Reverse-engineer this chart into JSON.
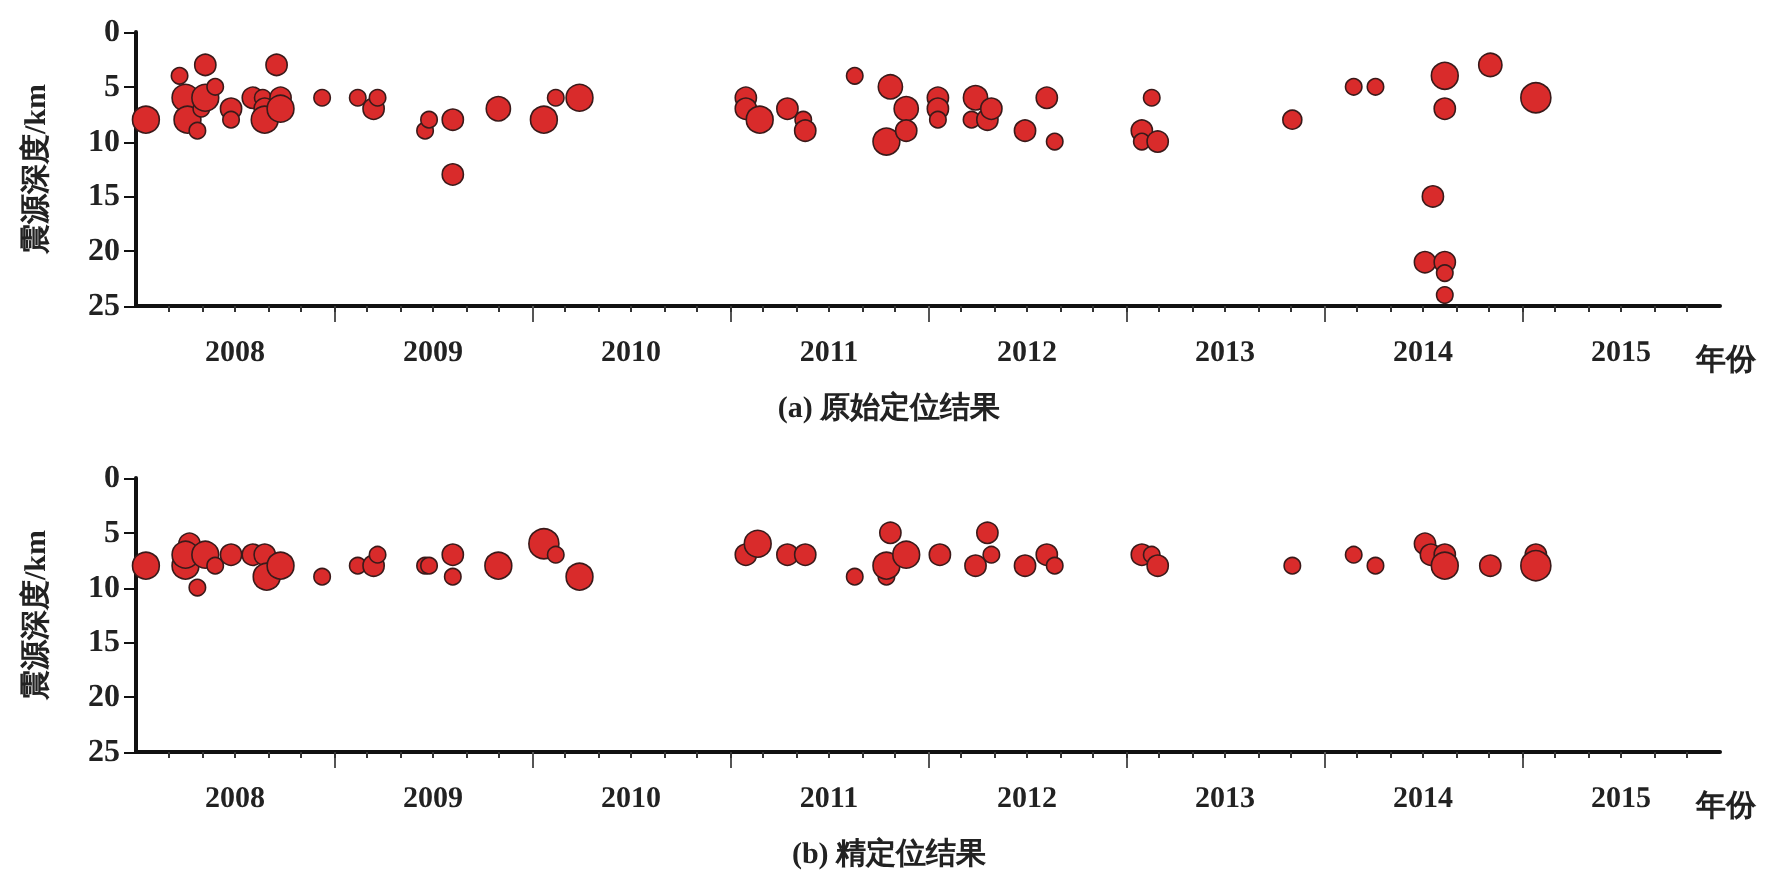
{
  "chart_data": [
    {
      "type": "bubble",
      "title": "(a) 原始定位结果",
      "xlabel": "年份",
      "ylabel": "震源深度/km",
      "color": "#d92b2b",
      "grid": false,
      "xlim": [
        2008,
        2016
      ],
      "ylim": [
        25,
        0
      ],
      "yticks": [
        0,
        5,
        10,
        15,
        20,
        25
      ],
      "xticks": [
        {
          "value": 2008.5,
          "label": "2008"
        },
        {
          "value": 2009,
          "label": null
        },
        {
          "value": 2009.5,
          "label": "2009"
        },
        {
          "value": 2010,
          "label": null
        },
        {
          "value": 2010.5,
          "label": "2010"
        },
        {
          "value": 2011,
          "label": null
        },
        {
          "value": 2011.5,
          "label": "2011"
        },
        {
          "value": 2012,
          "label": null
        },
        {
          "value": 2012.5,
          "label": "2012"
        },
        {
          "value": 2013,
          "label": null
        },
        {
          "value": 2013.5,
          "label": "2013"
        },
        {
          "value": 2014,
          "label": null
        },
        {
          "value": 2014.5,
          "label": "2014"
        },
        {
          "value": 2015,
          "label": null
        },
        {
          "value": 2015.5,
          "label": "2015"
        }
      ],
      "x": [
        2008.05,
        2008.22,
        2008.25,
        2008.26,
        2008.31,
        2008.33,
        2008.35,
        2008.35,
        2008.4,
        2008.48,
        2008.48,
        2008.59,
        2008.64,
        2008.65,
        2008.65,
        2008.71,
        2008.73,
        2008.73,
        2008.94,
        2009.12,
        2009.2,
        2009.22,
        2009.46,
        2009.48,
        2009.6,
        2009.6,
        2009.83,
        2010.06,
        2010.12,
        2010.24,
        2011.08,
        2011.08,
        2011.15,
        2011.29,
        2011.37,
        2011.38,
        2011.63,
        2011.81,
        2011.79,
        2011.89,
        2011.89,
        2012.05,
        2012.05,
        2012.05,
        2012.24,
        2012.22,
        2012.3,
        2012.32,
        2012.49,
        2012.6,
        2012.64,
        2013.08,
        2013.08,
        2013.13,
        2013.16,
        2013.84,
        2014.15,
        2014.26,
        2014.61,
        2014.61,
        2014.55,
        2014.51,
        2014.61,
        2014.61,
        2014.61,
        2014.84,
        2015.07
      ],
      "values": [
        8,
        4,
        6,
        8,
        9,
        7,
        3,
        6,
        5,
        7,
        8,
        6,
        6,
        7,
        8,
        3,
        6,
        7,
        6,
        6,
        7,
        6,
        9,
        8,
        8,
        13,
        7,
        8,
        6,
        6,
        6,
        7,
        8,
        7,
        8,
        9,
        4,
        5,
        10,
        7,
        9,
        6,
        7,
        8,
        6,
        8,
        8,
        7,
        9,
        6,
        10,
        9,
        10,
        6,
        10,
        8,
        5,
        5,
        4,
        7,
        15,
        21,
        21,
        22,
        24,
        3,
        6
      ],
      "sizes": [
        0.8,
        0.3,
        0.8,
        0.8,
        0.3,
        0.3,
        0.5,
        0.8,
        0.3,
        0.5,
        0.3,
        0.5,
        0.3,
        0.5,
        0.8,
        0.5,
        0.5,
        0.8,
        0.3,
        0.3,
        0.5,
        0.3,
        0.3,
        0.3,
        0.5,
        0.5,
        0.65,
        0.8,
        0.3,
        0.8,
        0.5,
        0.5,
        0.8,
        0.5,
        0.3,
        0.5,
        0.3,
        0.65,
        0.8,
        0.65,
        0.5,
        0.5,
        0.5,
        0.3,
        0.65,
        0.3,
        0.5,
        0.5,
        0.5,
        0.5,
        0.3,
        0.5,
        0.3,
        0.3,
        0.5,
        0.4,
        0.3,
        0.3,
        0.8,
        0.5,
        0.5,
        0.5,
        0.5,
        0.3,
        0.3,
        0.6,
        1
      ]
    },
    {
      "type": "bubble",
      "title": "(b) 精定位结果",
      "xlabel": "年份",
      "ylabel": "震源深度/km",
      "color": "#d92b2b",
      "grid": false,
      "xlim": [
        2008,
        2016
      ],
      "ylim": [
        25,
        0
      ],
      "yticks": [
        0,
        5,
        10,
        15,
        20,
        25
      ],
      "xticks": [
        {
          "value": 2008.5,
          "label": "2008"
        },
        {
          "value": 2009,
          "label": null
        },
        {
          "value": 2009.5,
          "label": "2009"
        },
        {
          "value": 2010,
          "label": null
        },
        {
          "value": 2010.5,
          "label": "2010"
        },
        {
          "value": 2011,
          "label": null
        },
        {
          "value": 2011.5,
          "label": "2011"
        },
        {
          "value": 2012,
          "label": null
        },
        {
          "value": 2012.5,
          "label": "2012"
        },
        {
          "value": 2013,
          "label": null
        },
        {
          "value": 2013.5,
          "label": "2013"
        },
        {
          "value": 2014,
          "label": null
        },
        {
          "value": 2014.5,
          "label": "2014"
        },
        {
          "value": 2015,
          "label": null
        },
        {
          "value": 2015.5,
          "label": "2015"
        }
      ],
      "x": [
        2008.05,
        2008.25,
        2008.27,
        2008.25,
        2008.31,
        2008.35,
        2008.4,
        2008.48,
        2008.59,
        2008.65,
        2008.66,
        2008.73,
        2008.94,
        2009.12,
        2009.2,
        2009.22,
        2009.46,
        2009.48,
        2009.6,
        2009.6,
        2009.83,
        2010.06,
        2010.12,
        2010.24,
        2011.08,
        2011.14,
        2011.29,
        2011.38,
        2011.63,
        2011.81,
        2011.79,
        2011.79,
        2011.89,
        2012.06,
        2012.3,
        2012.32,
        2012.24,
        2012.49,
        2012.6,
        2012.64,
        2013.08,
        2013.13,
        2013.16,
        2013.84,
        2014.15,
        2014.26,
        2014.51,
        2014.54,
        2014.61,
        2014.61,
        2014.84,
        2015.07,
        2015.07
      ],
      "values": [
        8,
        8,
        6,
        7,
        10,
        7,
        8,
        7,
        7,
        7,
        9,
        8,
        9,
        8,
        8,
        7,
        8,
        8,
        7,
        9,
        8,
        6,
        7,
        9,
        7,
        6,
        7,
        7,
        9,
        5,
        9,
        8,
        7,
        7,
        5,
        7,
        8,
        8,
        7,
        8,
        7,
        7,
        8,
        8,
        7,
        8,
        6,
        7,
        7,
        8,
        8,
        7,
        8
      ],
      "sizes": [
        0.8,
        0.8,
        0.5,
        0.8,
        0.3,
        0.8,
        0.3,
        0.5,
        0.5,
        0.5,
        0.8,
        0.8,
        0.3,
        0.3,
        0.5,
        0.3,
        0.3,
        0.3,
        0.5,
        0.3,
        0.8,
        1,
        0.3,
        0.8,
        0.5,
        0.8,
        0.5,
        0.5,
        0.3,
        0.5,
        0.3,
        0.8,
        0.8,
        0.5,
        0.5,
        0.3,
        0.5,
        0.5,
        0.5,
        0.3,
        0.5,
        0.3,
        0.5,
        0.3,
        0.3,
        0.3,
        0.5,
        0.5,
        0.5,
        0.8,
        0.5,
        0.5,
        1
      ]
    }
  ]
}
